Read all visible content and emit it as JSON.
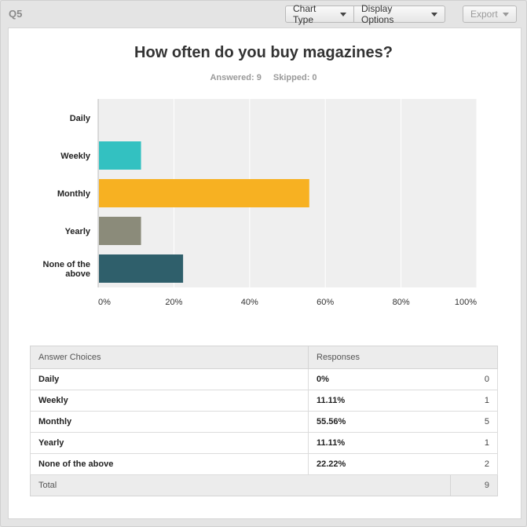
{
  "question": {
    "label": "Q5"
  },
  "toolbar": {
    "chart_type_label": "Chart Type",
    "display_options_label": "Display Options",
    "export_label": "Export"
  },
  "summary": {
    "answered": "Answered: 9",
    "skipped": "Skipped: 0"
  },
  "chart_data": {
    "type": "bar",
    "orientation": "horizontal",
    "title": "How often do you buy magazines?",
    "categories": [
      "Daily",
      "Weekly",
      "Monthly",
      "Yearly",
      "None of the above"
    ],
    "values": [
      0,
      11.11,
      55.56,
      11.11,
      22.22
    ],
    "colors": [
      "#9b9b9b",
      "#33c1c1",
      "#f7b122",
      "#8b8b7a",
      "#2f5f6b"
    ],
    "xlim": [
      0,
      100
    ],
    "xticks": [
      "0%",
      "20%",
      "40%",
      "60%",
      "80%",
      "100%"
    ],
    "grid": true,
    "plot_background": "#efefef"
  },
  "table": {
    "headers": {
      "choices": "Answer Choices",
      "responses": "Responses"
    },
    "rows": [
      {
        "choice": "Daily",
        "percent": "0%",
        "count": "0"
      },
      {
        "choice": "Weekly",
        "percent": "11.11%",
        "count": "1"
      },
      {
        "choice": "Monthly",
        "percent": "55.56%",
        "count": "5"
      },
      {
        "choice": "Yearly",
        "percent": "11.11%",
        "count": "1"
      },
      {
        "choice": "None of the above",
        "percent": "22.22%",
        "count": "2"
      }
    ],
    "total_label": "Total",
    "total_count": "9"
  }
}
